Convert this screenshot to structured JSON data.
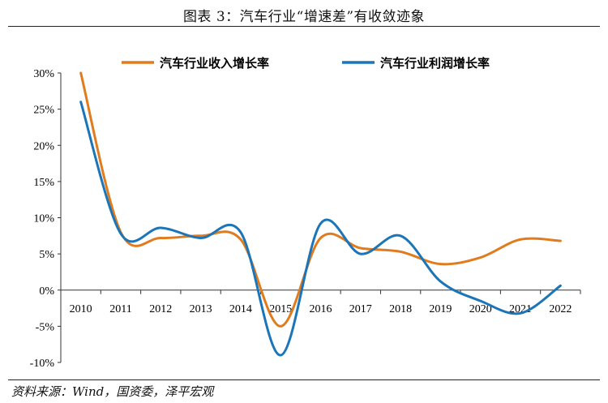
{
  "title": "图表 3：汽车行业“增速差”有收敛迹象",
  "source": "资料来源：Wind，国资委，泽平宏观",
  "colors": {
    "revenue": "#E07B1E",
    "profit": "#1B75B8"
  },
  "chart_data": {
    "type": "line",
    "x": [
      2010,
      2011,
      2012,
      2013,
      2014,
      2015,
      2016,
      2017,
      2018,
      2019,
      2020,
      2021,
      2022
    ],
    "categories": [
      "2010",
      "2011",
      "2012",
      "2013",
      "2014",
      "2015",
      "2016",
      "2017",
      "2018",
      "2019",
      "2020",
      "2021",
      "2022"
    ],
    "ylim": [
      -10,
      30
    ],
    "yticks": [
      "30%",
      "25%",
      "20%",
      "15%",
      "10%",
      "5%",
      "0%",
      "-5%",
      "-10%"
    ],
    "legend_position": "top",
    "grid": false,
    "series": [
      {
        "name": "汽车行业收入增长率",
        "values": [
          30.0,
          8.0,
          7.2,
          7.5,
          7.0,
          -5.0,
          7.2,
          5.8,
          5.3,
          3.6,
          4.5,
          7.0,
          6.8
        ]
      },
      {
        "name": "汽车行业利润增长率",
        "values": [
          26.0,
          7.8,
          8.6,
          7.2,
          8.0,
          -9.0,
          9.2,
          5.0,
          7.5,
          1.2,
          -1.5,
          -3.2,
          0.6
        ]
      }
    ]
  }
}
